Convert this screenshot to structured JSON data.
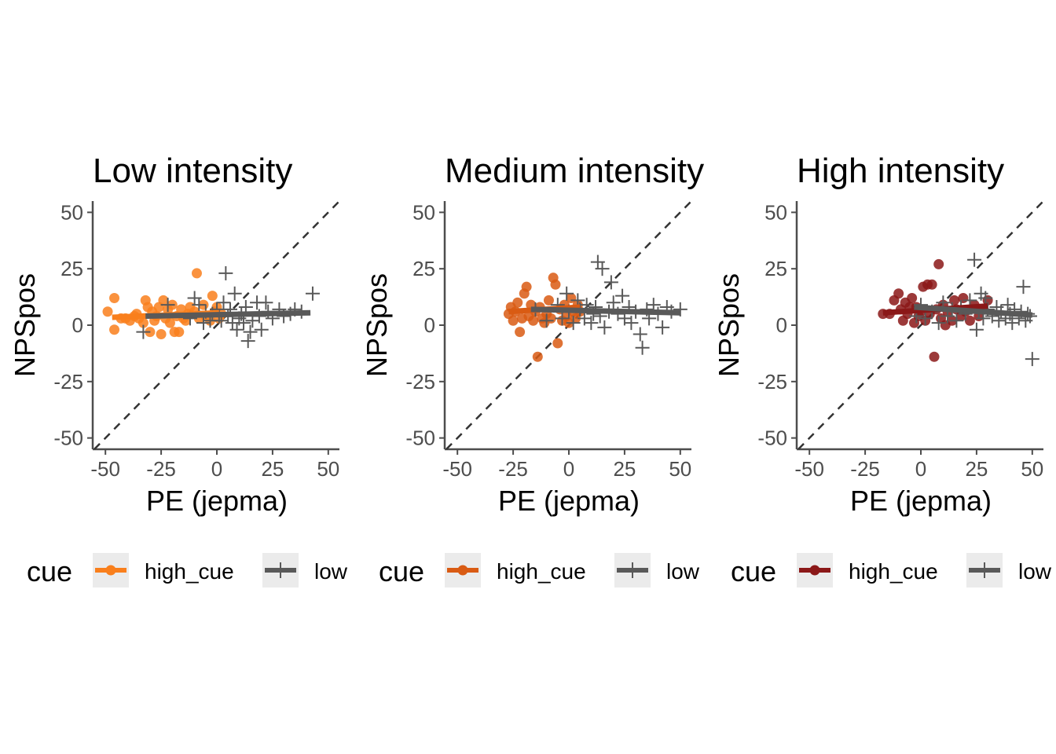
{
  "legend": {
    "title": "cue",
    "high_label": "high_cue",
    "low_label": "low"
  },
  "colors": {
    "low_series": "#595959",
    "diag": "#333333",
    "axis": "#4d4d4d",
    "key_bg": "#ebebeb"
  },
  "chart_data": [
    {
      "type": "scatter",
      "title": "Low intensity",
      "xlabel": "PE (jepma)",
      "ylabel": "NPSpos",
      "xlim": [
        -55,
        55
      ],
      "ylim": [
        -55,
        55
      ],
      "xticks": [
        -50,
        -25,
        0,
        25,
        50
      ],
      "yticks": [
        -50,
        -25,
        0,
        25,
        50
      ],
      "high_color": "#f97f1c",
      "reference_line": "y = x (dashed)",
      "series": [
        {
          "name": "high_cue",
          "marker": "circle",
          "points": [
            [
              -49,
              6
            ],
            [
              -46,
              12
            ],
            [
              -46,
              -2
            ],
            [
              -43,
              3
            ],
            [
              -41,
              3
            ],
            [
              -39,
              2
            ],
            [
              -37,
              4
            ],
            [
              -36,
              5
            ],
            [
              -35,
              3
            ],
            [
              -33,
              1
            ],
            [
              -32,
              11
            ],
            [
              -31,
              8
            ],
            [
              -30,
              -3
            ],
            [
              -29,
              6
            ],
            [
              -28,
              2
            ],
            [
              -27,
              4
            ],
            [
              -26,
              8
            ],
            [
              -25,
              -4
            ],
            [
              -24,
              11
            ],
            [
              -23,
              3
            ],
            [
              -22,
              7
            ],
            [
              -21,
              1
            ],
            [
              -20,
              9
            ],
            [
              -19,
              -3
            ],
            [
              -18,
              4
            ],
            [
              -17,
              -3
            ],
            [
              -16,
              7
            ],
            [
              -15,
              3
            ],
            [
              -14,
              2
            ],
            [
              -13,
              5
            ],
            [
              -12,
              8
            ],
            [
              -10,
              6
            ],
            [
              -9,
              23
            ],
            [
              -8,
              3
            ],
            [
              -6,
              9
            ],
            [
              -5,
              4
            ],
            [
              -3,
              2
            ],
            [
              -2,
              13
            ],
            [
              -1,
              6
            ],
            [
              0,
              8
            ],
            [
              1,
              3
            ],
            [
              2,
              5
            ]
          ],
          "fit": [
            [
              -47,
              3.5
            ],
            [
              1,
              5.5
            ]
          ]
        },
        {
          "name": "low",
          "marker": "plus",
          "points": [
            [
              -33,
              -3
            ],
            [
              -22,
              9
            ],
            [
              -12,
              3
            ],
            [
              -10,
              12
            ],
            [
              -8,
              9
            ],
            [
              -6,
              1
            ],
            [
              -5,
              6
            ],
            [
              -3,
              2
            ],
            [
              -2,
              5
            ],
            [
              0,
              7
            ],
            [
              1,
              4
            ],
            [
              2,
              2
            ],
            [
              3,
              10
            ],
            [
              4,
              23
            ],
            [
              5,
              4
            ],
            [
              6,
              7
            ],
            [
              7,
              1
            ],
            [
              8,
              14
            ],
            [
              9,
              -2
            ],
            [
              10,
              3
            ],
            [
              11,
              5
            ],
            [
              12,
              1
            ],
            [
              13,
              8
            ],
            [
              14,
              -7
            ],
            [
              15,
              -3
            ],
            [
              16,
              2
            ],
            [
              18,
              10
            ],
            [
              19,
              4
            ],
            [
              20,
              -2
            ],
            [
              22,
              10
            ],
            [
              23,
              6
            ],
            [
              25,
              3
            ],
            [
              28,
              7
            ],
            [
              30,
              4
            ],
            [
              33,
              5
            ],
            [
              35,
              7
            ],
            [
              38,
              6
            ],
            [
              43,
              14
            ]
          ],
          "fit": [
            [
              -32,
              4
            ],
            [
              42,
              5.5
            ]
          ]
        }
      ]
    },
    {
      "type": "scatter",
      "title": "Medium intensity",
      "xlabel": "PE (jepma)",
      "ylabel": "NPSpos",
      "xlim": [
        -55,
        55
      ],
      "ylim": [
        -55,
        55
      ],
      "xticks": [
        -50,
        -25,
        0,
        25,
        50
      ],
      "yticks": [
        -50,
        -25,
        0,
        25,
        50
      ],
      "high_color": "#d95b13",
      "reference_line": "y = x (dashed)",
      "series": [
        {
          "name": "high_cue",
          "marker": "circle",
          "points": [
            [
              -27,
              5
            ],
            [
              -26,
              8
            ],
            [
              -25,
              2
            ],
            [
              -24,
              6
            ],
            [
              -23,
              10
            ],
            [
              -22,
              -3
            ],
            [
              -21,
              3
            ],
            [
              -20,
              14
            ],
            [
              -19,
              17
            ],
            [
              -18,
              4
            ],
            [
              -17,
              9
            ],
            [
              -16,
              2
            ],
            [
              -15,
              6
            ],
            [
              -14,
              -14
            ],
            [
              -13,
              8
            ],
            [
              -12,
              3
            ],
            [
              -11,
              1
            ],
            [
              -10,
              5
            ],
            [
              -9,
              11
            ],
            [
              -8,
              3
            ],
            [
              -7,
              21
            ],
            [
              -6,
              18
            ],
            [
              -5,
              -8
            ],
            [
              -4,
              7
            ],
            [
              -3,
              2
            ],
            [
              -2,
              9
            ],
            [
              -1,
              4
            ],
            [
              0,
              1
            ],
            [
              1,
              12
            ],
            [
              2,
              6
            ],
            [
              3,
              3
            ],
            [
              4,
              9
            ],
            [
              5,
              6
            ]
          ],
          "fit": [
            [
              -27,
              6
            ],
            [
              5,
              8
            ]
          ]
        },
        {
          "name": "low",
          "marker": "plus",
          "points": [
            [
              -15,
              7
            ],
            [
              -10,
              2
            ],
            [
              -5,
              9
            ],
            [
              -3,
              3
            ],
            [
              -1,
              14
            ],
            [
              0,
              6
            ],
            [
              2,
              1
            ],
            [
              4,
              11
            ],
            [
              5,
              7
            ],
            [
              7,
              3
            ],
            [
              8,
              9
            ],
            [
              10,
              1
            ],
            [
              11,
              5
            ],
            [
              12,
              8
            ],
            [
              13,
              28
            ],
            [
              14,
              4
            ],
            [
              15,
              25
            ],
            [
              16,
              -1
            ],
            [
              18,
              6
            ],
            [
              19,
              19
            ],
            [
              20,
              10
            ],
            [
              22,
              5
            ],
            [
              24,
              13
            ],
            [
              25,
              3
            ],
            [
              27,
              8
            ],
            [
              28,
              1
            ],
            [
              30,
              6
            ],
            [
              32,
              -4
            ],
            [
              33,
              -10
            ],
            [
              35,
              7
            ],
            [
              36,
              3
            ],
            [
              38,
              9
            ],
            [
              40,
              5
            ],
            [
              42,
              -1
            ],
            [
              44,
              8
            ],
            [
              46,
              6
            ],
            [
              50,
              7
            ]
          ],
          "fit": [
            [
              -17,
              7
            ],
            [
              50,
              5.5
            ]
          ]
        }
      ]
    },
    {
      "type": "scatter",
      "title": "High intensity",
      "xlabel": "PE (jepma)",
      "ylabel": "NPSpos",
      "xlim": [
        -55,
        55
      ],
      "ylim": [
        -55,
        55
      ],
      "xticks": [
        -50,
        -25,
        0,
        25,
        50
      ],
      "yticks": [
        -50,
        -25,
        0,
        25,
        50
      ],
      "high_color": "#8b1818",
      "reference_line": "y = x (dashed)",
      "series": [
        {
          "name": "high_cue",
          "marker": "circle",
          "points": [
            [
              -17,
              5
            ],
            [
              -14,
              5
            ],
            [
              -12,
              11
            ],
            [
              -10,
              14
            ],
            [
              -9,
              7
            ],
            [
              -8,
              2
            ],
            [
              -7,
              10
            ],
            [
              -6,
              5
            ],
            [
              -5,
              8
            ],
            [
              -4,
              12
            ],
            [
              -3,
              1
            ],
            [
              -2,
              8
            ],
            [
              -1,
              4
            ],
            [
              0,
              6
            ],
            [
              1,
              17
            ],
            [
              2,
              2
            ],
            [
              3,
              18
            ],
            [
              4,
              5
            ],
            [
              5,
              18
            ],
            [
              6,
              -14
            ],
            [
              7,
              7
            ],
            [
              8,
              27
            ],
            [
              9,
              3
            ],
            [
              10,
              9
            ],
            [
              11,
              0
            ],
            [
              12,
              6
            ],
            [
              14,
              2
            ],
            [
              15,
              11
            ],
            [
              16,
              7
            ],
            [
              18,
              4
            ],
            [
              19,
              12
            ],
            [
              20,
              6
            ],
            [
              22,
              2
            ],
            [
              24,
              9
            ],
            [
              26,
              4
            ],
            [
              28,
              7
            ],
            [
              30,
              11
            ]
          ],
          "fit": [
            [
              -17,
              5.5
            ],
            [
              30,
              8.5
            ]
          ]
        },
        {
          "name": "low",
          "marker": "plus",
          "points": [
            [
              -2,
              4
            ],
            [
              0,
              9
            ],
            [
              2,
              3
            ],
            [
              5,
              6
            ],
            [
              8,
              1
            ],
            [
              10,
              10
            ],
            [
              12,
              4
            ],
            [
              14,
              7
            ],
            [
              16,
              2
            ],
            [
              18,
              8
            ],
            [
              20,
              5
            ],
            [
              22,
              11
            ],
            [
              24,
              29
            ],
            [
              25,
              -2
            ],
            [
              26,
              6
            ],
            [
              27,
              14
            ],
            [
              28,
              3
            ],
            [
              29,
              12
            ],
            [
              30,
              7
            ],
            [
              32,
              4
            ],
            [
              34,
              8
            ],
            [
              35,
              2
            ],
            [
              36,
              6
            ],
            [
              38,
              3
            ],
            [
              39,
              9
            ],
            [
              40,
              5
            ],
            [
              41,
              1
            ],
            [
              42,
              7
            ],
            [
              44,
              3
            ],
            [
              45,
              6
            ],
            [
              46,
              17
            ],
            [
              47,
              2
            ],
            [
              48,
              5
            ],
            [
              49,
              4
            ],
            [
              50,
              -15
            ]
          ],
          "fit": [
            [
              -3,
              8
            ],
            [
              50,
              4.5
            ]
          ]
        }
      ]
    }
  ]
}
